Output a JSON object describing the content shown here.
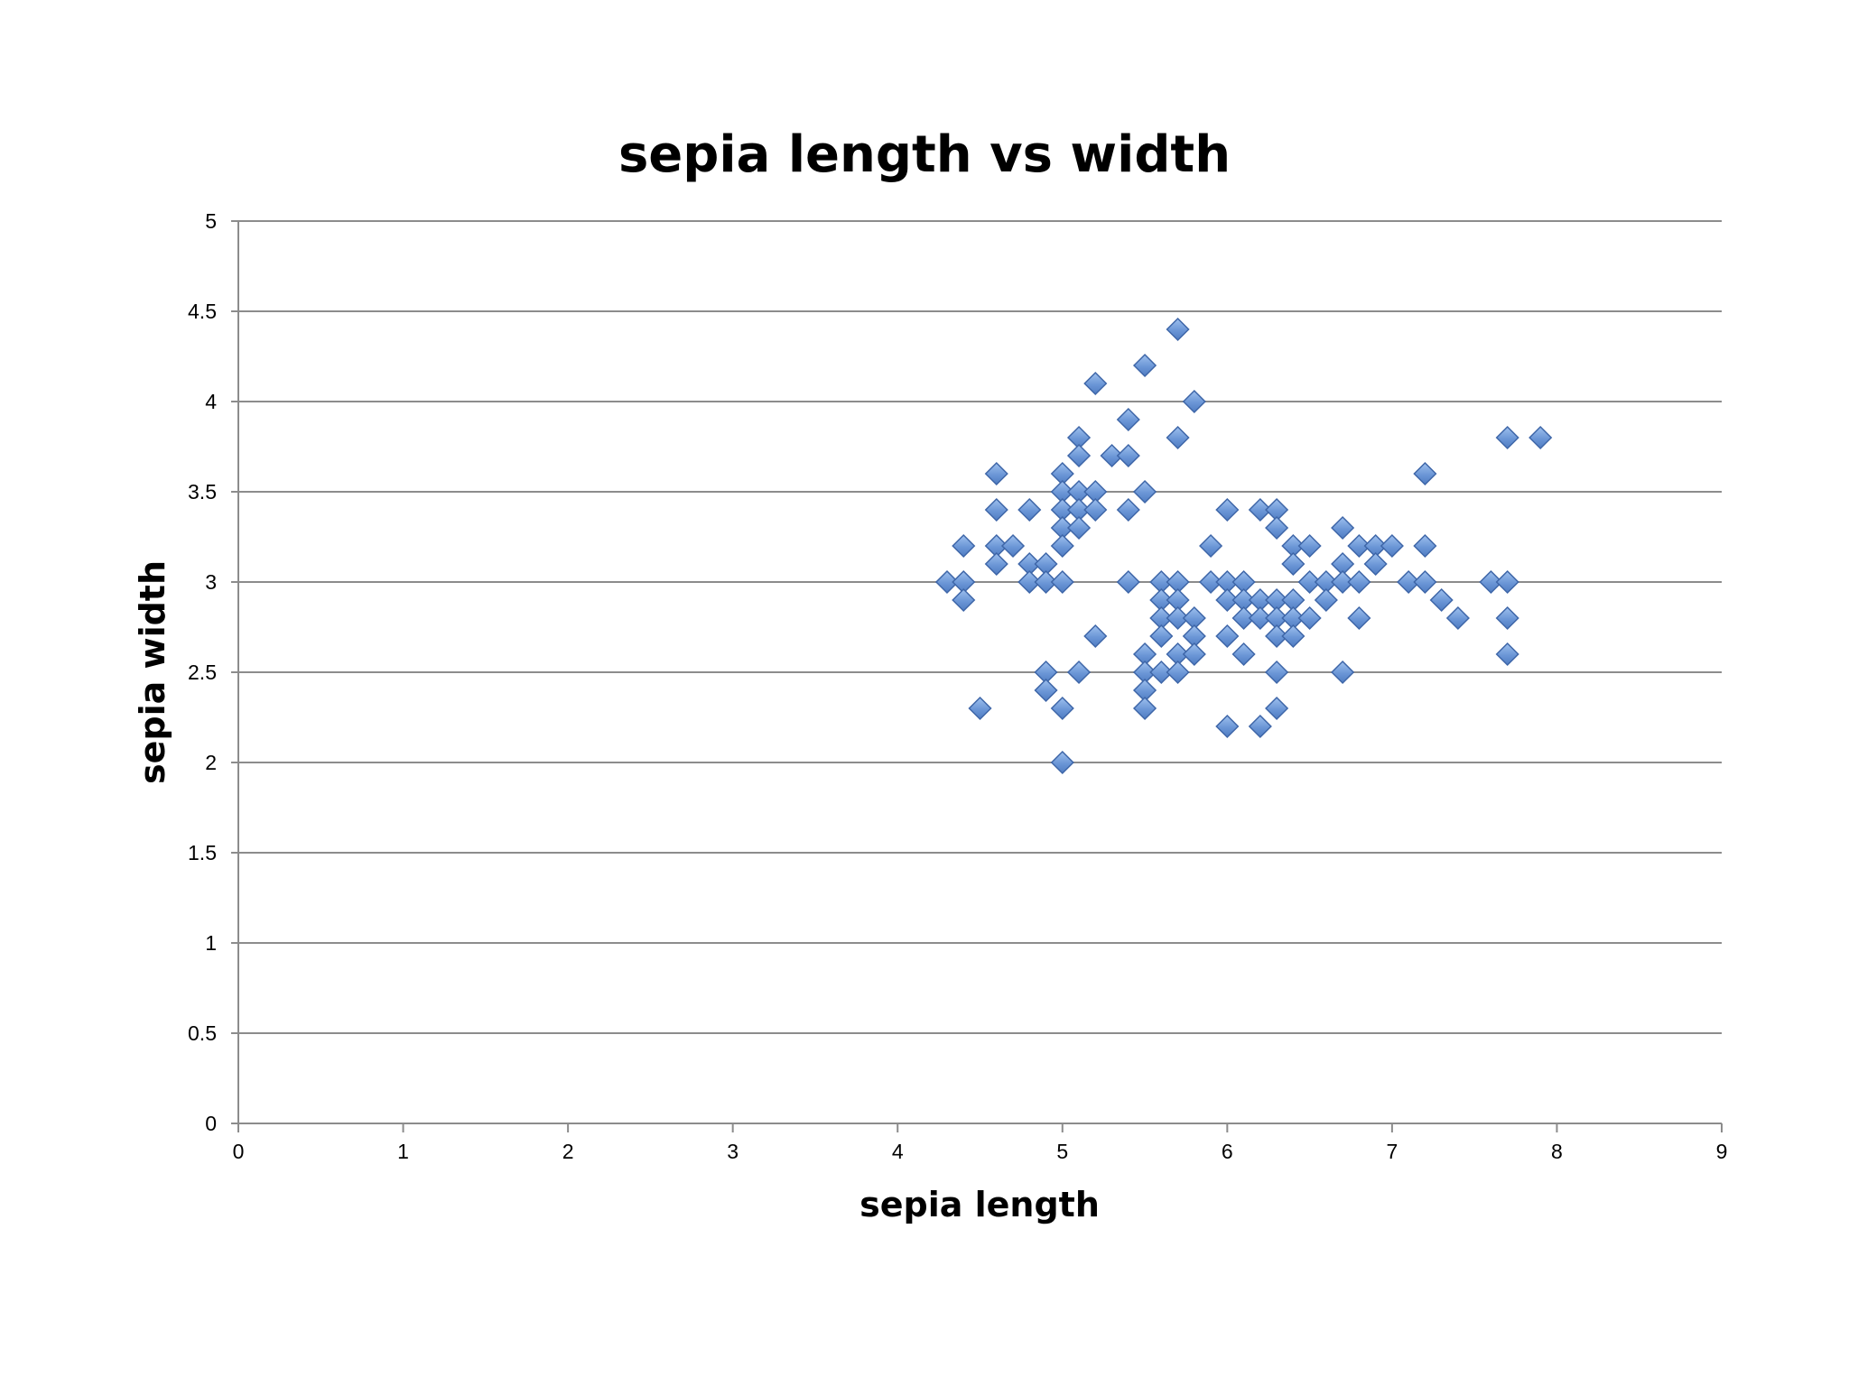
{
  "chart_data": {
    "type": "scatter",
    "title": "sepia length vs width",
    "xlabel": "sepia length",
    "ylabel": "sepia width",
    "xlim": [
      0,
      9
    ],
    "ylim": [
      0,
      5
    ],
    "xticks": [
      "0",
      "1",
      "2",
      "3",
      "4",
      "5",
      "6",
      "7",
      "8",
      "9"
    ],
    "yticks": [
      "0",
      "0.5",
      "1",
      "1.5",
      "2",
      "2.5",
      "3",
      "3.5",
      "4",
      "4.5",
      "5"
    ],
    "grid": "horizontal",
    "legend": "none",
    "marker": "diamond",
    "marker_color": "#6b96d6",
    "marker_edge_color": "#3e66a8",
    "points": [
      {
        "x": 4.3,
        "y": 3.0
      },
      {
        "x": 4.4,
        "y": 3.2
      },
      {
        "x": 4.4,
        "y": 3.0
      },
      {
        "x": 4.4,
        "y": 2.9
      },
      {
        "x": 4.5,
        "y": 2.3
      },
      {
        "x": 4.6,
        "y": 3.6
      },
      {
        "x": 4.6,
        "y": 3.4
      },
      {
        "x": 4.6,
        "y": 3.2
      },
      {
        "x": 4.6,
        "y": 3.1
      },
      {
        "x": 4.7,
        "y": 3.2
      },
      {
        "x": 4.8,
        "y": 3.4
      },
      {
        "x": 4.8,
        "y": 3.1
      },
      {
        "x": 4.8,
        "y": 3.0
      },
      {
        "x": 4.9,
        "y": 3.1
      },
      {
        "x": 4.9,
        "y": 3.0
      },
      {
        "x": 4.9,
        "y": 2.5
      },
      {
        "x": 4.9,
        "y": 2.4
      },
      {
        "x": 5.0,
        "y": 3.6
      },
      {
        "x": 5.0,
        "y": 3.5
      },
      {
        "x": 5.0,
        "y": 3.4
      },
      {
        "x": 5.0,
        "y": 3.3
      },
      {
        "x": 5.0,
        "y": 3.2
      },
      {
        "x": 5.0,
        "y": 3.0
      },
      {
        "x": 5.0,
        "y": 2.3
      },
      {
        "x": 5.0,
        "y": 2.0
      },
      {
        "x": 5.1,
        "y": 3.8
      },
      {
        "x": 5.1,
        "y": 3.7
      },
      {
        "x": 5.1,
        "y": 3.5
      },
      {
        "x": 5.1,
        "y": 3.4
      },
      {
        "x": 5.1,
        "y": 3.3
      },
      {
        "x": 5.1,
        "y": 2.5
      },
      {
        "x": 5.2,
        "y": 4.1
      },
      {
        "x": 5.2,
        "y": 3.5
      },
      {
        "x": 5.2,
        "y": 3.4
      },
      {
        "x": 5.2,
        "y": 2.7
      },
      {
        "x": 5.3,
        "y": 3.7
      },
      {
        "x": 5.4,
        "y": 3.9
      },
      {
        "x": 5.4,
        "y": 3.7
      },
      {
        "x": 5.4,
        "y": 3.4
      },
      {
        "x": 5.4,
        "y": 3.0
      },
      {
        "x": 5.5,
        "y": 4.2
      },
      {
        "x": 5.5,
        "y": 3.5
      },
      {
        "x": 5.5,
        "y": 2.6
      },
      {
        "x": 5.5,
        "y": 2.5
      },
      {
        "x": 5.5,
        "y": 2.4
      },
      {
        "x": 5.5,
        "y": 2.3
      },
      {
        "x": 5.6,
        "y": 3.0
      },
      {
        "x": 5.6,
        "y": 2.9
      },
      {
        "x": 5.6,
        "y": 2.8
      },
      {
        "x": 5.6,
        "y": 2.7
      },
      {
        "x": 5.6,
        "y": 2.5
      },
      {
        "x": 5.7,
        "y": 4.4
      },
      {
        "x": 5.7,
        "y": 3.8
      },
      {
        "x": 5.7,
        "y": 3.0
      },
      {
        "x": 5.7,
        "y": 2.9
      },
      {
        "x": 5.7,
        "y": 2.8
      },
      {
        "x": 5.7,
        "y": 2.6
      },
      {
        "x": 5.7,
        "y": 2.5
      },
      {
        "x": 5.8,
        "y": 4.0
      },
      {
        "x": 5.8,
        "y": 2.8
      },
      {
        "x": 5.8,
        "y": 2.7
      },
      {
        "x": 5.8,
        "y": 2.6
      },
      {
        "x": 5.9,
        "y": 3.2
      },
      {
        "x": 5.9,
        "y": 3.0
      },
      {
        "x": 6.0,
        "y": 3.4
      },
      {
        "x": 6.0,
        "y": 3.0
      },
      {
        "x": 6.0,
        "y": 2.9
      },
      {
        "x": 6.0,
        "y": 2.7
      },
      {
        "x": 6.0,
        "y": 2.2
      },
      {
        "x": 6.1,
        "y": 3.0
      },
      {
        "x": 6.1,
        "y": 2.9
      },
      {
        "x": 6.1,
        "y": 2.8
      },
      {
        "x": 6.1,
        "y": 2.6
      },
      {
        "x": 6.2,
        "y": 3.4
      },
      {
        "x": 6.2,
        "y": 2.9
      },
      {
        "x": 6.2,
        "y": 2.8
      },
      {
        "x": 6.2,
        "y": 2.2
      },
      {
        "x": 6.3,
        "y": 3.4
      },
      {
        "x": 6.3,
        "y": 3.3
      },
      {
        "x": 6.3,
        "y": 2.9
      },
      {
        "x": 6.3,
        "y": 2.8
      },
      {
        "x": 6.3,
        "y": 2.7
      },
      {
        "x": 6.3,
        "y": 2.5
      },
      {
        "x": 6.3,
        "y": 2.3
      },
      {
        "x": 6.4,
        "y": 3.2
      },
      {
        "x": 6.4,
        "y": 3.1
      },
      {
        "x": 6.4,
        "y": 2.9
      },
      {
        "x": 6.4,
        "y": 2.8
      },
      {
        "x": 6.4,
        "y": 2.7
      },
      {
        "x": 6.5,
        "y": 3.2
      },
      {
        "x": 6.5,
        "y": 3.0
      },
      {
        "x": 6.5,
        "y": 2.8
      },
      {
        "x": 6.6,
        "y": 3.0
      },
      {
        "x": 6.6,
        "y": 2.9
      },
      {
        "x": 6.7,
        "y": 3.3
      },
      {
        "x": 6.7,
        "y": 3.1
      },
      {
        "x": 6.7,
        "y": 3.0
      },
      {
        "x": 6.7,
        "y": 2.5
      },
      {
        "x": 6.8,
        "y": 3.2
      },
      {
        "x": 6.8,
        "y": 3.0
      },
      {
        "x": 6.8,
        "y": 2.8
      },
      {
        "x": 6.9,
        "y": 3.2
      },
      {
        "x": 6.9,
        "y": 3.1
      },
      {
        "x": 7.0,
        "y": 3.2
      },
      {
        "x": 7.1,
        "y": 3.0
      },
      {
        "x": 7.2,
        "y": 3.6
      },
      {
        "x": 7.2,
        "y": 3.2
      },
      {
        "x": 7.2,
        "y": 3.0
      },
      {
        "x": 7.3,
        "y": 2.9
      },
      {
        "x": 7.4,
        "y": 2.8
      },
      {
        "x": 7.6,
        "y": 3.0
      },
      {
        "x": 7.7,
        "y": 3.8
      },
      {
        "x": 7.7,
        "y": 3.0
      },
      {
        "x": 7.7,
        "y": 2.8
      },
      {
        "x": 7.7,
        "y": 2.6
      },
      {
        "x": 7.9,
        "y": 3.8
      }
    ]
  }
}
